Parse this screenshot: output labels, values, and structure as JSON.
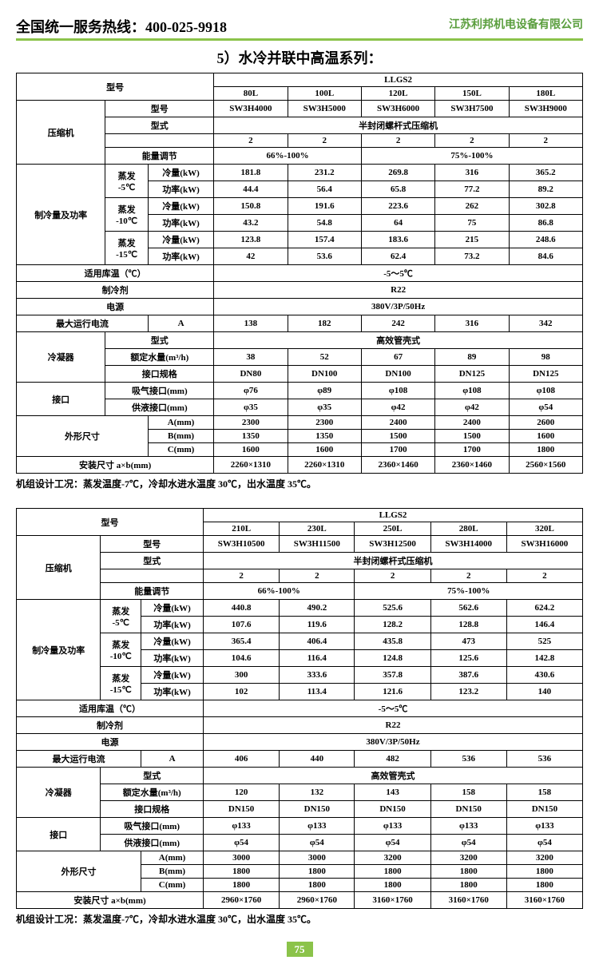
{
  "header": {
    "hot": "全国统一服务热线：400-025-9918",
    "co": "江苏利邦机电设备有限公司",
    "title": "5）水冷并联中高温系列：",
    "page": "75",
    "note": "机组设计工况：蒸发温度-7℃，冷却水进水温度 30℃，出水温度 35℃。"
  },
  "lbl": {
    "model": "型号",
    "series": "LLGS2",
    "comp": "压缩机",
    "cmodel": "型号",
    "ctype": "型式",
    "cn": "2",
    "reg": "能量调节",
    "reg1": "66%-100%",
    "reg2": "75%-100%",
    "ctyv": "半封闭螺杆式压缩机",
    "cap": "制冷量及功率",
    "evap": "蒸发",
    "t1": "-5℃",
    "t2": "-10℃",
    "t3": "-15℃",
    "ql": "冷量(kW)",
    "gl": "功率(kW)",
    "temp": "适用库温（℃）",
    "tempv": "-5～5℃",
    "ref": "制冷剂",
    "refv": "R22",
    "pwr": "电源",
    "pwrv": "380V/3P/50Hz",
    "cur": "最大运行电流",
    "curA": "A",
    "cond": "冷凝器",
    "cdtype": "型式",
    "cdtypev": "高效管壳式",
    "water": "额定水量(m³/h)",
    "conn": "接口规格",
    "port": "接口",
    "suc": "吸气接口(mm)",
    "liq": "供液接口(mm)",
    "dim": "外形尺寸",
    "A": "A(mm)",
    "B": "B(mm)",
    "C": "C(mm)",
    "inst": "安装尺寸 a×b(mm)"
  },
  "t1": {
    "cols": [
      "80L",
      "100L",
      "120L",
      "150L",
      "180L"
    ],
    "cmod": [
      "SW3H4000",
      "SW3H5000",
      "SW3H6000",
      "SW3H7500",
      "SW3H9000"
    ],
    "q1": [
      "181.8",
      "231.2",
      "269.8",
      "316",
      "365.2"
    ],
    "g1": [
      "44.4",
      "56.4",
      "65.8",
      "77.2",
      "89.2"
    ],
    "q2": [
      "150.8",
      "191.6",
      "223.6",
      "262",
      "302.8"
    ],
    "g2": [
      "43.2",
      "54.8",
      "64",
      "75",
      "86.8"
    ],
    "q3": [
      "123.8",
      "157.4",
      "183.6",
      "215",
      "248.6"
    ],
    "g3": [
      "42",
      "53.6",
      "62.4",
      "73.2",
      "84.6"
    ],
    "cur": [
      "138",
      "182",
      "242",
      "316",
      "342"
    ],
    "water": [
      "38",
      "52",
      "67",
      "89",
      "98"
    ],
    "conn": [
      "DN80",
      "DN100",
      "DN100",
      "DN125",
      "DN125"
    ],
    "suc": [
      "φ76",
      "φ89",
      "φ108",
      "φ108",
      "φ108"
    ],
    "liq": [
      "φ35",
      "φ35",
      "φ42",
      "φ42",
      "φ54"
    ],
    "A": [
      "2300",
      "2300",
      "2400",
      "2400",
      "2600"
    ],
    "B": [
      "1350",
      "1350",
      "1500",
      "1500",
      "1600"
    ],
    "C": [
      "1600",
      "1600",
      "1700",
      "1700",
      "1800"
    ],
    "inst": [
      "2260×1310",
      "2260×1310",
      "2360×1460",
      "2360×1460",
      "2560×1560"
    ]
  },
  "t2": {
    "cols": [
      "210L",
      "230L",
      "250L",
      "280L",
      "320L"
    ],
    "cmod": [
      "SW3H10500",
      "SW3H11500",
      "SW3H12500",
      "SW3H14000",
      "SW3H16000"
    ],
    "q1": [
      "440.8",
      "490.2",
      "525.6",
      "562.6",
      "624.2"
    ],
    "g1": [
      "107.6",
      "119.6",
      "128.2",
      "128.8",
      "146.4"
    ],
    "q2": [
      "365.4",
      "406.4",
      "435.8",
      "473",
      "525"
    ],
    "g2": [
      "104.6",
      "116.4",
      "124.8",
      "125.6",
      "142.8"
    ],
    "q3": [
      "300",
      "333.6",
      "357.8",
      "387.6",
      "430.6"
    ],
    "g3": [
      "102",
      "113.4",
      "121.6",
      "123.2",
      "140"
    ],
    "cur": [
      "406",
      "440",
      "482",
      "536",
      "536"
    ],
    "water": [
      "120",
      "132",
      "143",
      "158",
      "158"
    ],
    "conn": [
      "DN150",
      "DN150",
      "DN150",
      "DN150",
      "DN150"
    ],
    "suc": [
      "φ133",
      "φ133",
      "φ133",
      "φ133",
      "φ133"
    ],
    "liq": [
      "φ54",
      "φ54",
      "φ54",
      "φ54",
      "φ54"
    ],
    "A": [
      "3000",
      "3000",
      "3200",
      "3200",
      "3200"
    ],
    "B": [
      "1800",
      "1800",
      "1800",
      "1800",
      "1800"
    ],
    "C": [
      "1800",
      "1800",
      "1800",
      "1800",
      "1800"
    ],
    "inst": [
      "2960×1760",
      "2960×1760",
      "3160×1760",
      "3160×1760",
      "3160×1760"
    ]
  }
}
